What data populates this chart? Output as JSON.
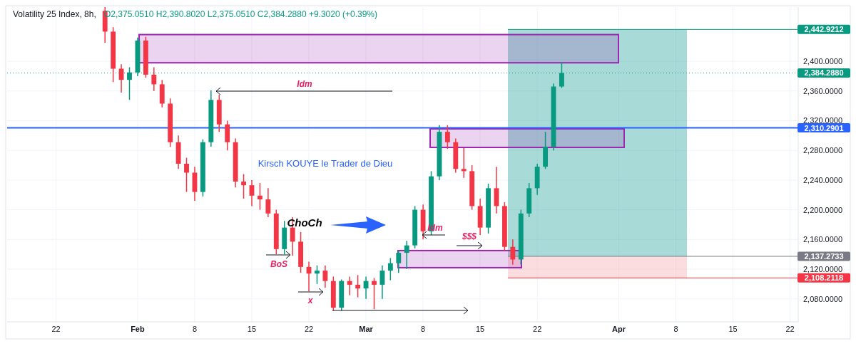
{
  "chart_data": {
    "type": "candlestick",
    "title": "Volatility 25 Index, 8h,",
    "subtitle": "O2,375.0510 H2,390.8020 L2,375.0510 C2,384.2880 +9.3020 (+0.39%)",
    "x": [
      "--01-28",
      "--01-29",
      "--01-30",
      "--01-31",
      "--02-01",
      "--02-02",
      "--02-03",
      "--02-04",
      "--02-05",
      "--02-06",
      "--02-07",
      "--02-08",
      "--02-09",
      "--02-10",
      "--02-11",
      "--02-12",
      "--02-13",
      "--02-14",
      "--02-15",
      "--02-16",
      "--02-17",
      "--02-18",
      "--02-19",
      "--02-20",
      "--02-21",
      "--02-22",
      "--02-23",
      "--02-24",
      "--02-25",
      "--02-26",
      "--02-27",
      "--02-28",
      "--03-01",
      "--03-02",
      "--03-03",
      "--03-04",
      "--03-05",
      "--03-06",
      "--03-07",
      "--03-08",
      "--03-09",
      "--03-10",
      "--03-11",
      "--03-12",
      "--03-13",
      "--03-14",
      "--03-15",
      "--03-16",
      "--03-17",
      "--03-18",
      "--03-19",
      "--03-20",
      "--03-21",
      "--03-22",
      "--03-23",
      "--03-24",
      "--03-25"
    ],
    "ohlc": [
      [
        2468,
        2473,
        2425,
        2440
      ],
      [
        2440,
        2446,
        2372,
        2390
      ],
      [
        2390,
        2396,
        2358,
        2375
      ],
      [
        2375,
        2392,
        2348,
        2385
      ],
      [
        2385,
        2432,
        2380,
        2428
      ],
      [
        2428,
        2433,
        2378,
        2382
      ],
      [
        2382,
        2392,
        2360,
        2369
      ],
      [
        2369,
        2375,
        2338,
        2343
      ],
      [
        2343,
        2350,
        2285,
        2291
      ],
      [
        2291,
        2300,
        2255,
        2262
      ],
      [
        2262,
        2270,
        2224,
        2250
      ],
      [
        2250,
        2258,
        2212,
        2224
      ],
      [
        2224,
        2295,
        2218,
        2291
      ],
      [
        2291,
        2361,
        2285,
        2348
      ],
      [
        2348,
        2355,
        2305,
        2315
      ],
      [
        2315,
        2320,
        2280,
        2291
      ],
      [
        2291,
        2296,
        2230,
        2238
      ],
      [
        2238,
        2248,
        2215,
        2233
      ],
      [
        2233,
        2240,
        2205,
        2219
      ],
      [
        2219,
        2236,
        2200,
        2214
      ],
      [
        2214,
        2229,
        2190,
        2195
      ],
      [
        2195,
        2200,
        2140,
        2147
      ],
      [
        2147,
        2185,
        2140,
        2176
      ],
      [
        2176,
        2190,
        2138,
        2157
      ],
      [
        2157,
        2170,
        2115,
        2123
      ],
      [
        2123,
        2130,
        2090,
        2114
      ],
      [
        2114,
        2125,
        2100,
        2118
      ],
      [
        2118,
        2125,
        2095,
        2104
      ],
      [
        2104,
        2110,
        2064,
        2068
      ],
      [
        2068,
        2106,
        2064,
        2104
      ],
      [
        2104,
        2110,
        2085,
        2099
      ],
      [
        2099,
        2112,
        2082,
        2094
      ],
      [
        2094,
        2110,
        2080,
        2104
      ],
      [
        2104,
        2108,
        2066,
        2099
      ],
      [
        2099,
        2125,
        2080,
        2118
      ],
      [
        2118,
        2135,
        2105,
        2128
      ],
      [
        2128,
        2145,
        2115,
        2142
      ],
      [
        2142,
        2158,
        2120,
        2152
      ],
      [
        2152,
        2205,
        2148,
        2200
      ],
      [
        2200,
        2207,
        2160,
        2171
      ],
      [
        2171,
        2252,
        2166,
        2245
      ],
      [
        2245,
        2314,
        2240,
        2305
      ],
      [
        2305,
        2314,
        2282,
        2291
      ],
      [
        2291,
        2296,
        2250,
        2255
      ],
      [
        2255,
        2283,
        2243,
        2252
      ],
      [
        2252,
        2260,
        2200,
        2205
      ],
      [
        2205,
        2215,
        2166,
        2176
      ],
      [
        2176,
        2235,
        2168,
        2229
      ],
      [
        2229,
        2258,
        2195,
        2205
      ],
      [
        2205,
        2210,
        2145,
        2150
      ],
      [
        2150,
        2160,
        2126,
        2133
      ],
      [
        2133,
        2200,
        2126,
        2195
      ],
      [
        2195,
        2236,
        2190,
        2229
      ],
      [
        2229,
        2262,
        2220,
        2258
      ],
      [
        2258,
        2305,
        2255,
        2285
      ],
      [
        2285,
        2370,
        2280,
        2366
      ],
      [
        2366,
        2399,
        2364,
        2384.288
      ]
    ],
    "xlim": [
      "--01-16",
      "--04-23"
    ],
    "xticks": [
      {
        "value": "--01-22",
        "label": "22"
      },
      {
        "value": "--02-01",
        "label": "Feb"
      },
      {
        "value": "--02-08",
        "label": "8"
      },
      {
        "value": "--02-15",
        "label": "15"
      },
      {
        "value": "--02-22",
        "label": "22"
      },
      {
        "value": "--03-01",
        "label": "Mar"
      },
      {
        "value": "--03-08",
        "label": "8"
      },
      {
        "value": "--03-15",
        "label": "15"
      },
      {
        "value": "--03-22",
        "label": "22"
      },
      {
        "value": "--04-01",
        "label": "Apr"
      },
      {
        "value": "--04-08",
        "label": "8"
      },
      {
        "value": "--04-15",
        "label": "15"
      },
      {
        "value": "--04-22",
        "label": "22"
      }
    ],
    "ylim": [
      2049,
      2473
    ],
    "yticks": [
      {
        "value": 2080,
        "label": "2,080.0000"
      },
      {
        "value": 2120,
        "label": "2,120.0000"
      },
      {
        "value": 2160,
        "label": "2,160.0000"
      },
      {
        "value": 2200,
        "label": "2,200.0000"
      },
      {
        "value": 2240,
        "label": "2,240.0000"
      },
      {
        "value": 2280,
        "label": "2,280.0000"
      },
      {
        "value": 2320,
        "label": "2,320.0000"
      },
      {
        "value": 2360,
        "label": "2,360.0000"
      },
      {
        "value": 2400,
        "label": "2,400.0000"
      }
    ],
    "grid": true,
    "bands": [
      {
        "axis": "y",
        "from": 2137.2733,
        "to": 2442.9212,
        "color": "#26a69a"
      },
      {
        "axis": "y",
        "from": 2108.2118,
        "to": 2137.2733,
        "color": "#f7a9b0"
      },
      {
        "axis": "y",
        "from": 2398,
        "to": 2436,
        "color": "#9c27b0"
      },
      {
        "axis": "y",
        "from": 2284,
        "to": 2309,
        "color": "#9c27b0"
      },
      {
        "axis": "y",
        "from": 2122,
        "to": 2145,
        "color": "#9c27b0"
      }
    ],
    "ref_lines": [
      {
        "axis": "y",
        "value": 2442.9212,
        "label": "2,442.9212",
        "color": "#089981"
      },
      {
        "axis": "y",
        "value": 2384.288,
        "label": "2,384.2880",
        "color": "#089981",
        "line_style": "dotted"
      },
      {
        "axis": "y",
        "value": 2310.2901,
        "label": "2,310.2901",
        "color": "#2962ff",
        "line_style": "solid"
      },
      {
        "axis": "y",
        "value": 2137.2733,
        "label": "2,137.2733",
        "color": "#787b86"
      },
      {
        "axis": "y",
        "value": 2108.2118,
        "label": "2,108.2118",
        "color": "#f23645"
      }
    ],
    "annotations": [
      "Idm",
      "ChoCh",
      "Idm",
      "$$$",
      "BoS",
      "x",
      "Kirsch KOUYE le Trader de Dieu"
    ]
  }
}
